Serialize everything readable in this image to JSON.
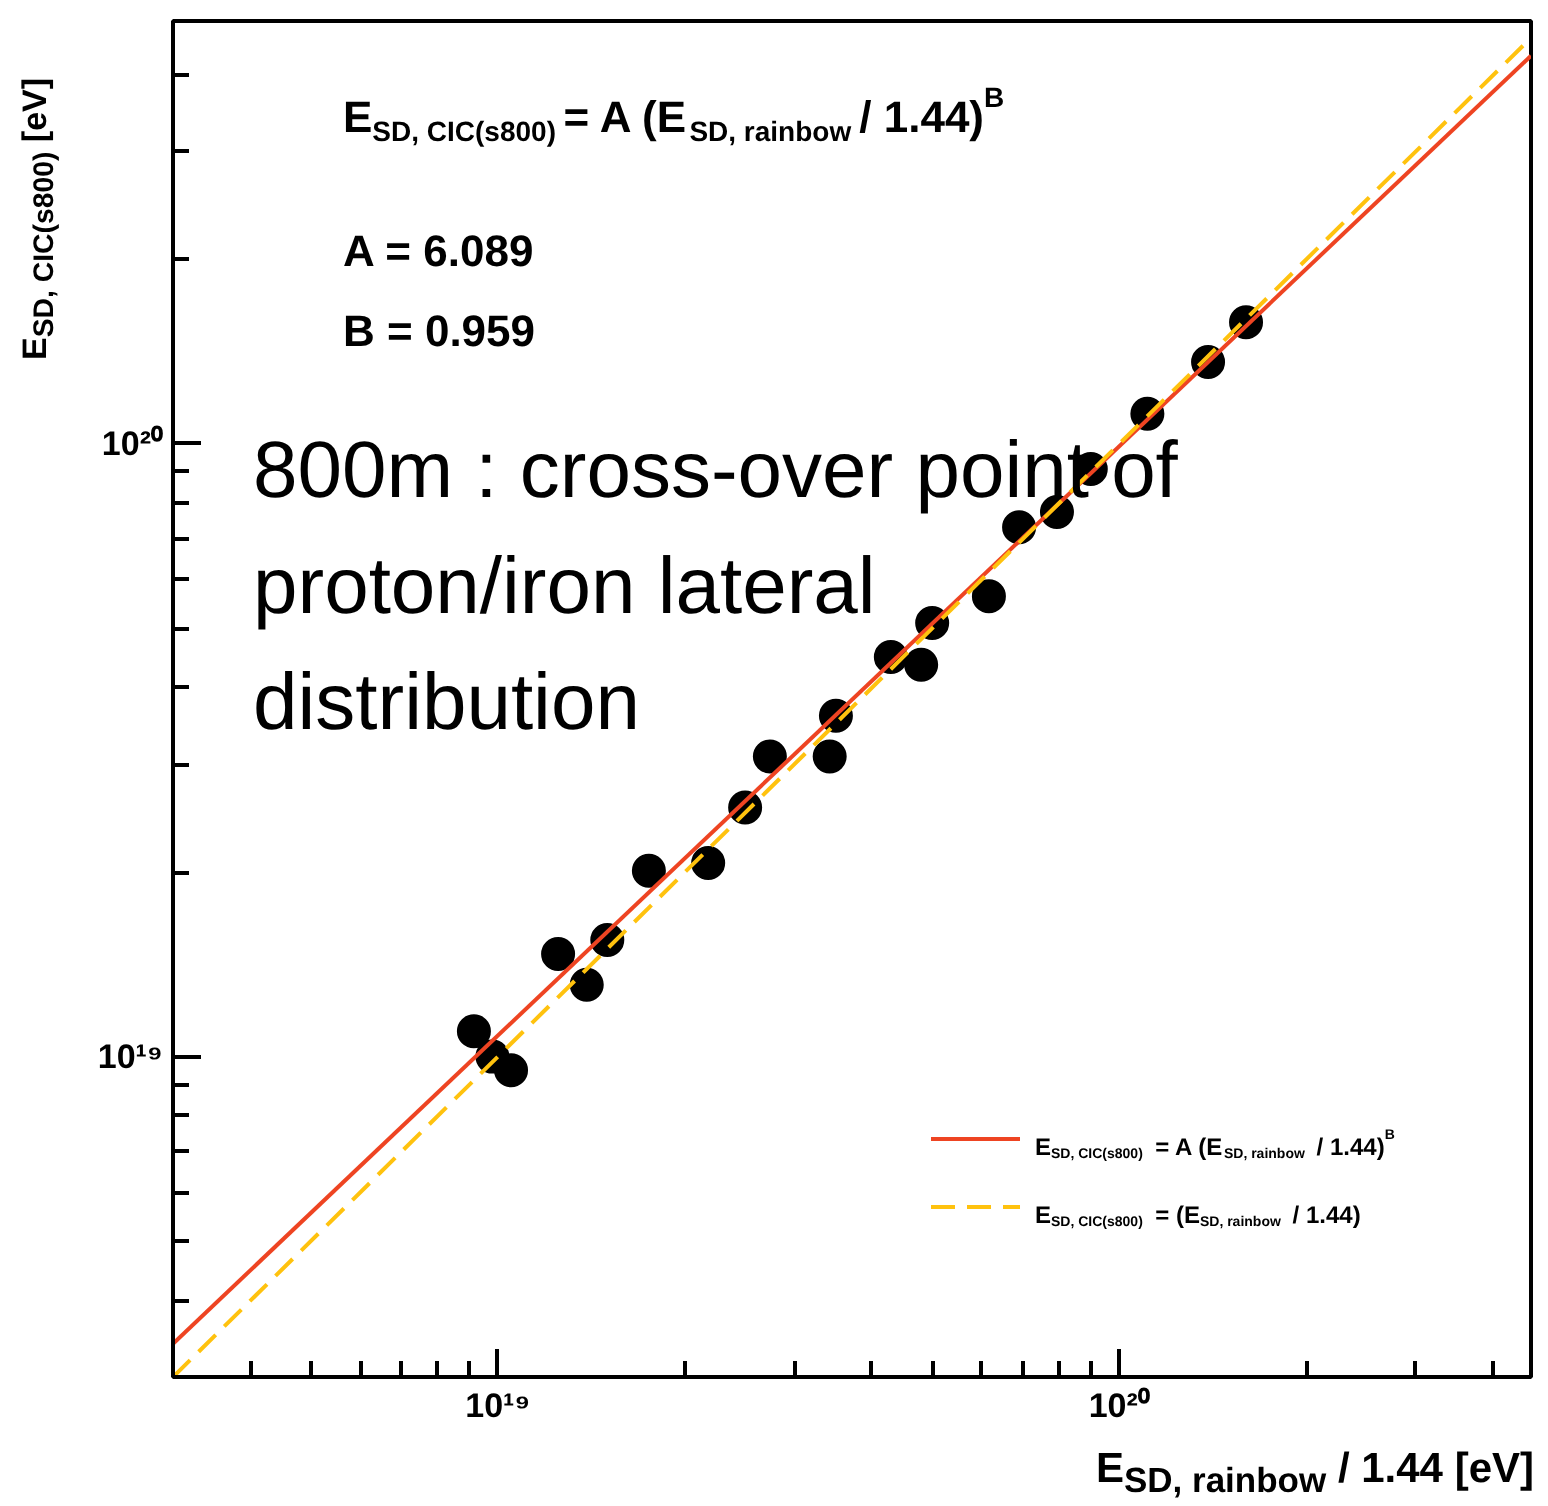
{
  "chart_data": {
    "type": "scatter",
    "xlabel": "E$_{SD, rainbow}$ / 1.44 [eV]",
    "ylabel": "E$_{SD, CIC(s800)}$ [eV]",
    "annotations": [
      "E$_{SD, CIC(s800)}$ = A (E$_{SD, rainbow}$ / 1.44)$^{B}$",
      "A = 6.089",
      "B = 0.959",
      "800m : cross-over point of proton/iron lateral distribution"
    ],
    "log": "xy",
    "grid": false,
    "legend": "bottom right",
    "xlim": [
      3e+18,
      4.6e+20
    ],
    "ylim": [
      3e+18,
      4.9e+20
    ],
    "xticks": [
      {
        "value": 4e+18,
        "label": null
      },
      {
        "value": 5e+18,
        "label": null
      },
      {
        "value": 6e+18,
        "label": null
      },
      {
        "value": 7e+18,
        "label": null
      },
      {
        "value": 8e+18,
        "label": null
      },
      {
        "value": 9e+18,
        "label": null
      },
      {
        "value": 1e+19,
        "label": "10¹⁹"
      },
      {
        "value": 2e+19,
        "label": null
      },
      {
        "value": 3e+19,
        "label": null
      },
      {
        "value": 4e+19,
        "label": null
      },
      {
        "value": 5e+19,
        "label": null
      },
      {
        "value": 6e+19,
        "label": null
      },
      {
        "value": 7e+19,
        "label": null
      },
      {
        "value": 8e+19,
        "label": null
      },
      {
        "value": 9e+19,
        "label": null
      },
      {
        "value": 1e+20,
        "label": "10²⁰"
      },
      {
        "value": 2e+20,
        "label": null
      },
      {
        "value": 3e+20,
        "label": null
      },
      {
        "value": 4e+20,
        "label": null
      }
    ],
    "yticks": [
      {
        "value": 4e+18,
        "label": null
      },
      {
        "value": 5e+18,
        "label": null
      },
      {
        "value": 6e+18,
        "label": null
      },
      {
        "value": 7e+18,
        "label": null
      },
      {
        "value": 8e+18,
        "label": null
      },
      {
        "value": 9e+18,
        "label": null
      },
      {
        "value": 1e+19,
        "label": "10¹⁹"
      },
      {
        "value": 2e+19,
        "label": null
      },
      {
        "value": 3e+19,
        "label": null
      },
      {
        "value": 4e+19,
        "label": null
      },
      {
        "value": 5e+19,
        "label": null
      },
      {
        "value": 6e+19,
        "label": null
      },
      {
        "value": 7e+19,
        "label": null
      },
      {
        "value": 8e+19,
        "label": null
      },
      {
        "value": 9e+19,
        "label": null
      },
      {
        "value": 1e+20,
        "label": "10²⁰"
      },
      {
        "value": 2e+20,
        "label": null
      },
      {
        "value": 3e+20,
        "label": null
      },
      {
        "value": 4e+20,
        "label": null
      }
    ],
    "series": [
      {
        "marker": "circle",
        "color": "#000000",
        "x": [
          9.15e+18,
          9.8e+18,
          1.05e+19,
          1.25e+19,
          1.39e+19,
          1.5e+19,
          1.75e+19,
          2.18e+19,
          2.5e+19,
          2.74e+19,
          3.42e+19,
          3.5e+19,
          4.29e+19,
          4.8e+19,
          5e+19,
          6.17e+19,
          6.9e+19,
          7.94e+19,
          9e+19,
          1.11e+20,
          1.39e+20,
          1.6e+20
        ],
        "values": [
          1.1e+19,
          1e+19,
          9.5e+18,
          1.47e+19,
          1.31e+19,
          1.55e+19,
          2.01e+19,
          2.07e+19,
          2.55e+19,
          3.09e+19,
          3.09e+19,
          3.6e+19,
          4.49e+19,
          4.36e+19,
          5.1e+19,
          5.64e+19,
          7.31e+19,
          7.74e+19,
          9.1e+19,
          1.12e+20,
          1.36e+20,
          1.58e+20
        ]
      },
      {
        "type": "line",
        "name": "E$_{SD, CIC(s800)}$ = A (E$_{SD, rainbow}$ / 1.44)$^{B}$",
        "color": "#ee4422",
        "line_style": "solid",
        "x": [
          3e+18,
          4.6e+20
        ],
        "values": [
          3.4e+18,
          4.3e+20
        ]
      },
      {
        "type": "line",
        "name": "E$_{SD, CIC(s800)}$ = (E$_{SD, rainbow}$ / 1.44)",
        "color": "#ffc20e",
        "line_style": "dashed",
        "x": [
          3e+18,
          4.6e+20
        ],
        "values": [
          3e+18,
          4.6e+20
        ]
      }
    ]
  }
}
